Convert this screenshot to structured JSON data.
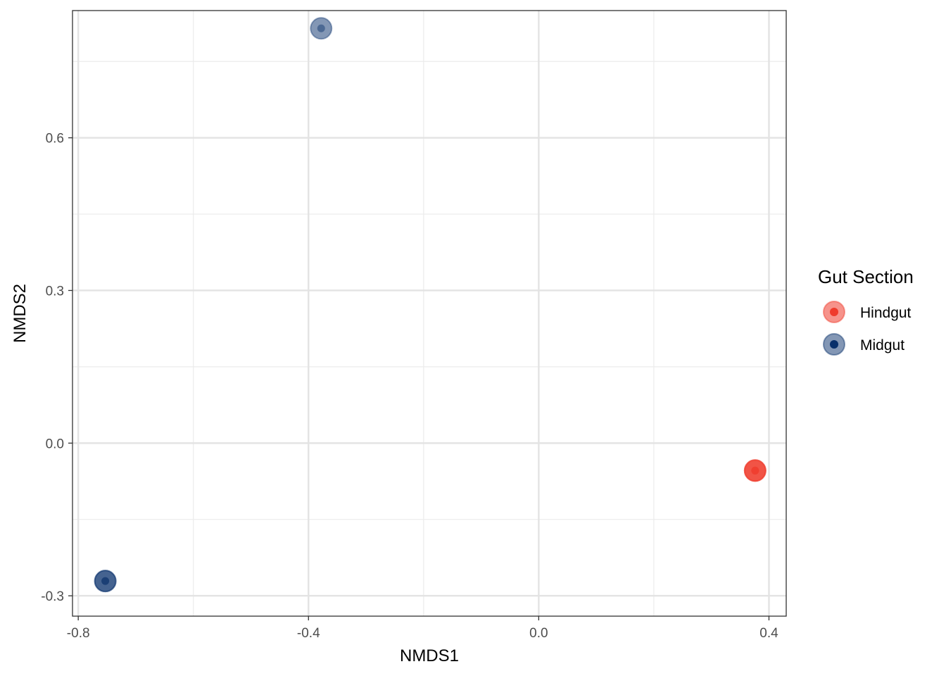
{
  "chart_data": {
    "type": "scatter",
    "xlabel": "NMDS1",
    "ylabel": "NMDS2",
    "xlim": [
      -0.81,
      0.43
    ],
    "ylim": [
      -0.34,
      0.85
    ],
    "x_ticks": [
      -0.8,
      -0.4,
      0.0,
      0.4
    ],
    "x_tick_labels": [
      "-0.8",
      "-0.4",
      "0.0",
      "0.4"
    ],
    "y_ticks": [
      -0.3,
      0.0,
      0.3,
      0.6
    ],
    "y_tick_labels": [
      "-0.3",
      "0.0",
      "0.3",
      "0.6"
    ],
    "grid": true,
    "legend": {
      "title": "Gut Section",
      "position": "right",
      "entries": [
        "Hindgut",
        "Midgut"
      ]
    },
    "series": [
      {
        "name": "Hindgut",
        "color": "#ef3b2c",
        "points": [
          {
            "x": 0.376,
            "y": -0.054
          },
          {
            "x": 0.376,
            "y": -0.054
          },
          {
            "x": 0.376,
            "y": -0.054
          }
        ]
      },
      {
        "name": "Midgut",
        "color": "#08306b",
        "points": [
          {
            "x": -0.378,
            "y": 0.815
          },
          {
            "x": -0.753,
            "y": -0.271
          },
          {
            "x": -0.753,
            "y": -0.271
          }
        ]
      }
    ]
  }
}
